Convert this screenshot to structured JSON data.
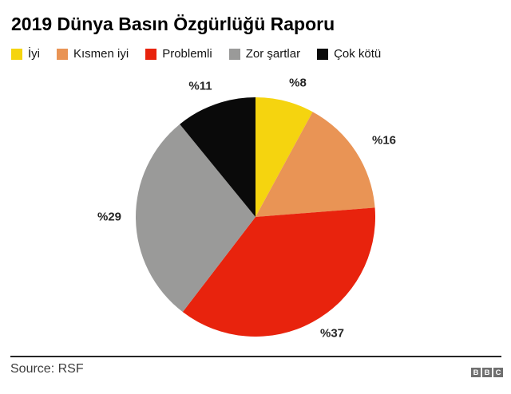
{
  "title": "2019 Dünya Basın Özgürlüğü Raporu",
  "chart_data": {
    "type": "pie",
    "title": "2019 Dünya Basın Özgürlüğü Raporu",
    "direction": "clockwise",
    "start_angle_deg": 0,
    "legend_position": "top",
    "slices": [
      {
        "label": "İyi",
        "value": 8,
        "display": "%8",
        "color": "#f5d40f"
      },
      {
        "label": "Kısmen iyi",
        "value": 16,
        "display": "%16",
        "color": "#e99455"
      },
      {
        "label": "Problemli",
        "value": 37,
        "display": "%37",
        "color": "#e8230d"
      },
      {
        "label": "Zor şartlar",
        "value": 29,
        "display": "%29",
        "color": "#9a9a99"
      },
      {
        "label": "Çok kötü",
        "value": 11,
        "display": "%11",
        "color": "#0a0a0a"
      }
    ]
  },
  "footer": {
    "source": "Source: RSF",
    "logo": [
      "B",
      "B",
      "C"
    ]
  }
}
